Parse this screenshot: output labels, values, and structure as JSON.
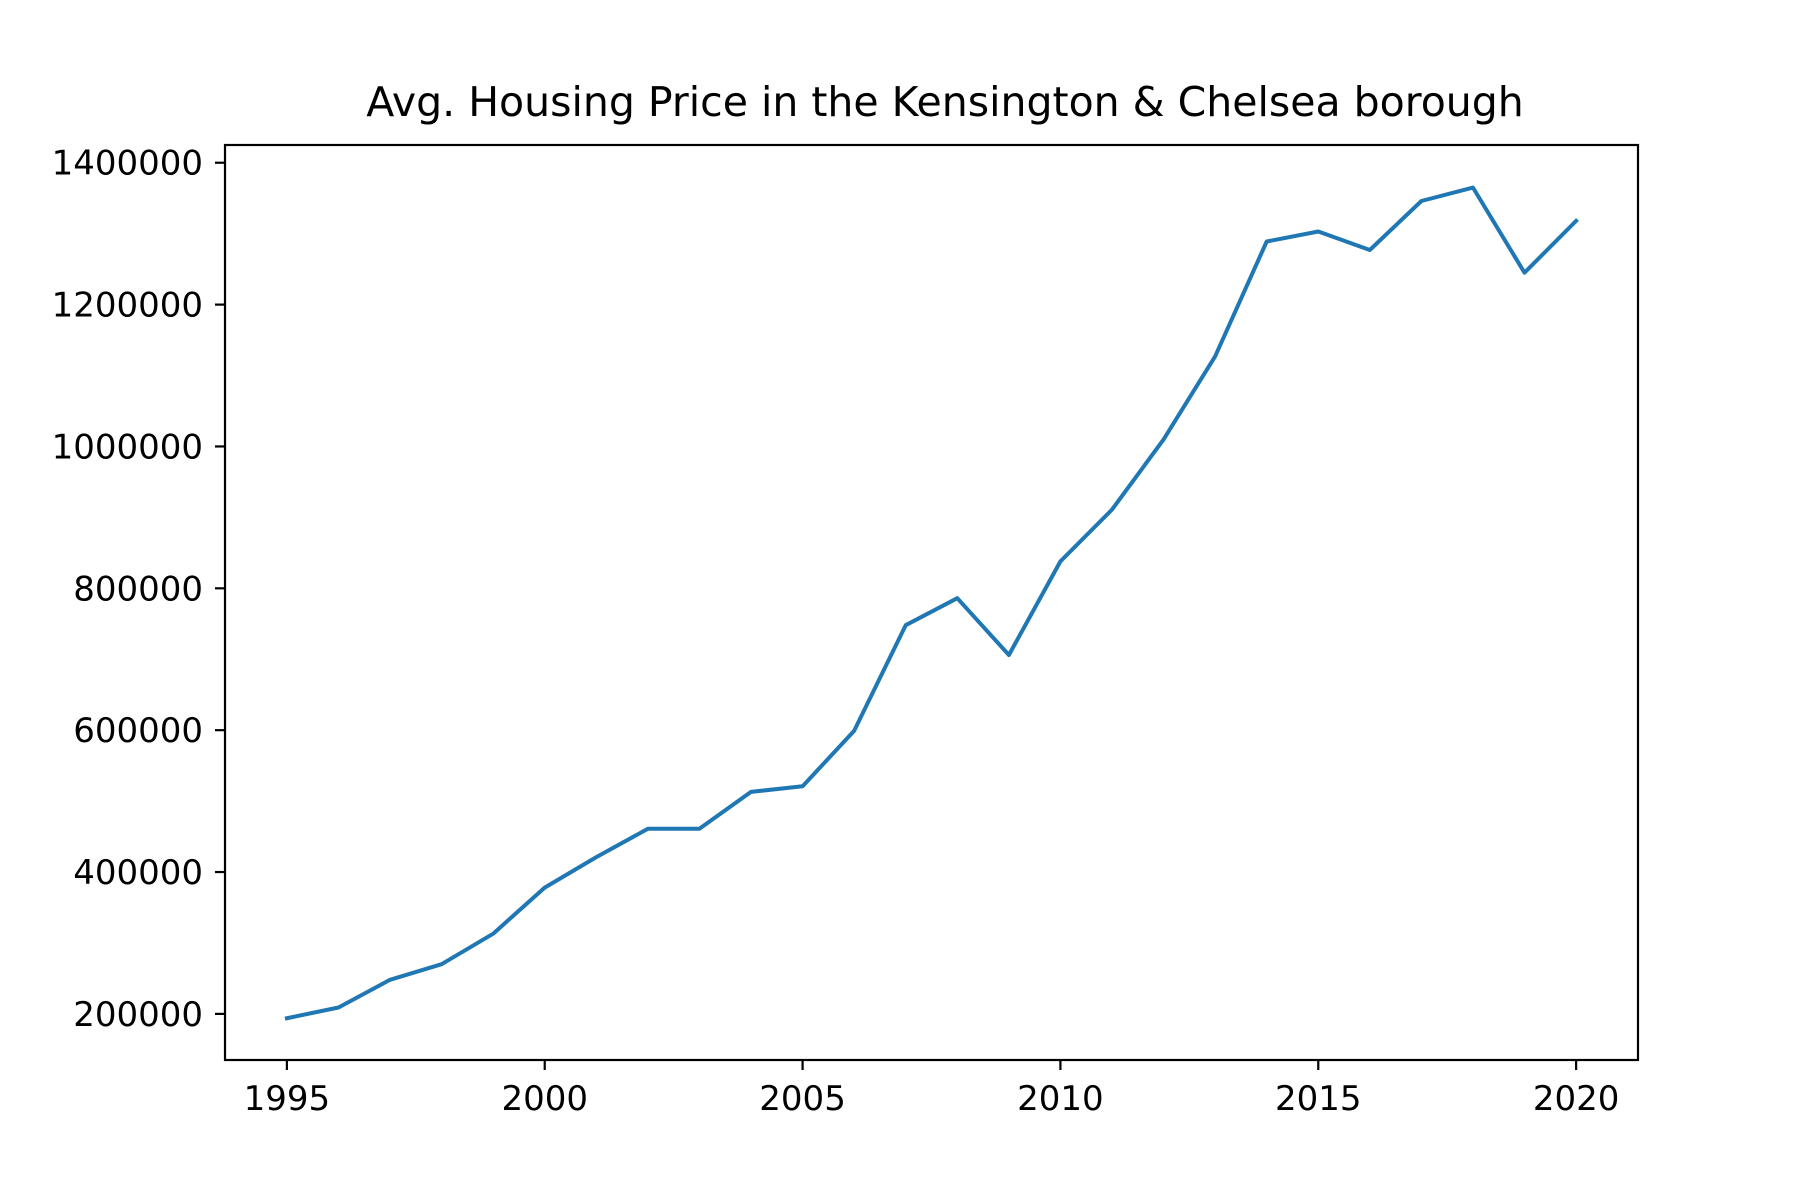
{
  "chart_data": {
    "type": "line",
    "title": "Avg. Housing Price in the Kensington & Chelsea borough",
    "xlabel": "",
    "ylabel": "",
    "xlim": [
      1993.8,
      2021.2
    ],
    "ylim": [
      135000,
      1425000
    ],
    "x_ticks": [
      1995,
      2000,
      2005,
      2010,
      2015,
      2020
    ],
    "x_tick_labels": [
      "1995",
      "2000",
      "2005",
      "2010",
      "2015",
      "2020"
    ],
    "y_ticks": [
      200000,
      400000,
      600000,
      800000,
      1000000,
      1200000,
      1400000
    ],
    "y_tick_labels": [
      "200000",
      "400000",
      "600000",
      "800000",
      "1000000",
      "1200000",
      "1400000"
    ],
    "grid": false,
    "legend": "none",
    "x": [
      1995,
      1996,
      1997,
      1998,
      1999,
      2000,
      2001,
      2002,
      2003,
      2004,
      2005,
      2006,
      2007,
      2008,
      2009,
      2010,
      2011,
      2012,
      2013,
      2014,
      2015,
      2016,
      2017,
      2018,
      2019,
      2020
    ],
    "series": [
      {
        "color": "#1f77b4",
        "values": [
          194000,
          209000,
          248000,
          270000,
          313000,
          378000,
          421000,
          461000,
          461000,
          513000,
          521000,
          599000,
          748000,
          786000,
          706000,
          838000,
          911000,
          1010000,
          1127000,
          1289000,
          1303000,
          1277000,
          1346000,
          1365000,
          1245000,
          1318000
        ]
      }
    ]
  }
}
